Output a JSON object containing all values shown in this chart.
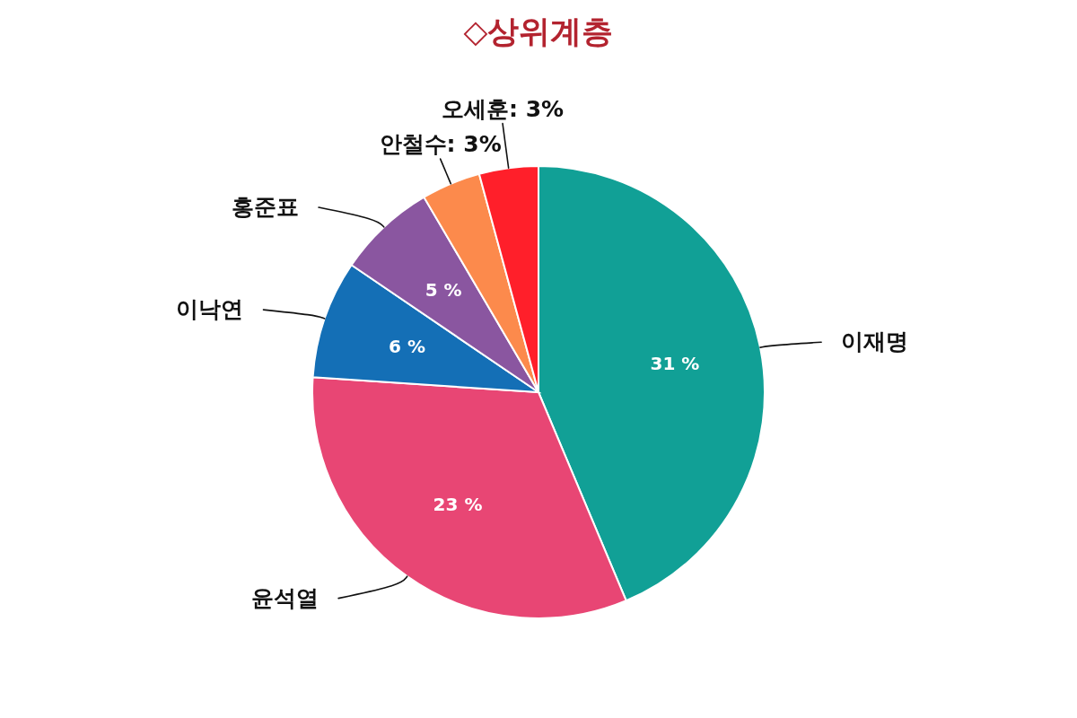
{
  "chart_data": {
    "type": "pie",
    "title": "◇상위계층",
    "categories": [
      "이재명",
      "윤석열",
      "이낙연",
      "홍준표",
      "안철수",
      "오세훈"
    ],
    "values": [
      31,
      23,
      6,
      5,
      3,
      3
    ],
    "colors": [
      "#11a096",
      "#e84674",
      "#146fb6",
      "#8a56a0",
      "#fc8a4c",
      "#ff1f2a"
    ],
    "value_labels": [
      "31 %",
      "23 %",
      "6 %",
      "5 %",
      "3%",
      "3%"
    ]
  }
}
